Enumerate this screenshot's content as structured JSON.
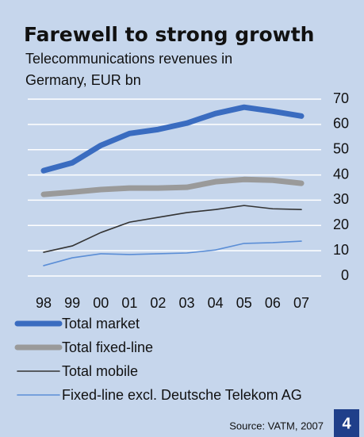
{
  "chart_data": {
    "type": "line",
    "title": "Farewell to strong growth",
    "subtitle": [
      "Telecommunications revenues in",
      "Germany, EUR bn"
    ],
    "categories": [
      "98",
      "99",
      "00",
      "01",
      "02",
      "03",
      "04",
      "05",
      "06",
      "07"
    ],
    "series": [
      {
        "name": "Total market",
        "color": "#3a6cc0",
        "width": 7,
        "values": [
          41.7,
          44.8,
          51.7,
          56.4,
          58,
          60.5,
          64.3,
          66.8,
          65.2,
          63.3
        ]
      },
      {
        "name": "Total fixed-line",
        "color": "#9a9a9a",
        "width": 7,
        "values": [
          32.3,
          33.2,
          34.2,
          34.8,
          34.8,
          35.1,
          37.3,
          38.2,
          37.9,
          36.7
        ]
      },
      {
        "name": "Total mobile",
        "color": "#333333",
        "width": 1.6,
        "values": [
          9.4,
          11.9,
          17.2,
          21.3,
          23.2,
          25.1,
          26.3,
          27.9,
          26.6,
          26.3
        ]
      },
      {
        "name": "Fixed-line excl. Deutsche Telekom AG",
        "color": "#5b8ed6",
        "width": 1.6,
        "values": [
          4.1,
          7.2,
          8.8,
          8.5,
          8.8,
          9.1,
          10.3,
          12.9,
          13.2,
          13.8
        ]
      }
    ],
    "ylim": [
      0,
      70
    ],
    "yticks": [
      0,
      10,
      20,
      30,
      40,
      50,
      60,
      70
    ],
    "grid": true,
    "source": "Source: VATM, 2007",
    "page_number": "4"
  }
}
